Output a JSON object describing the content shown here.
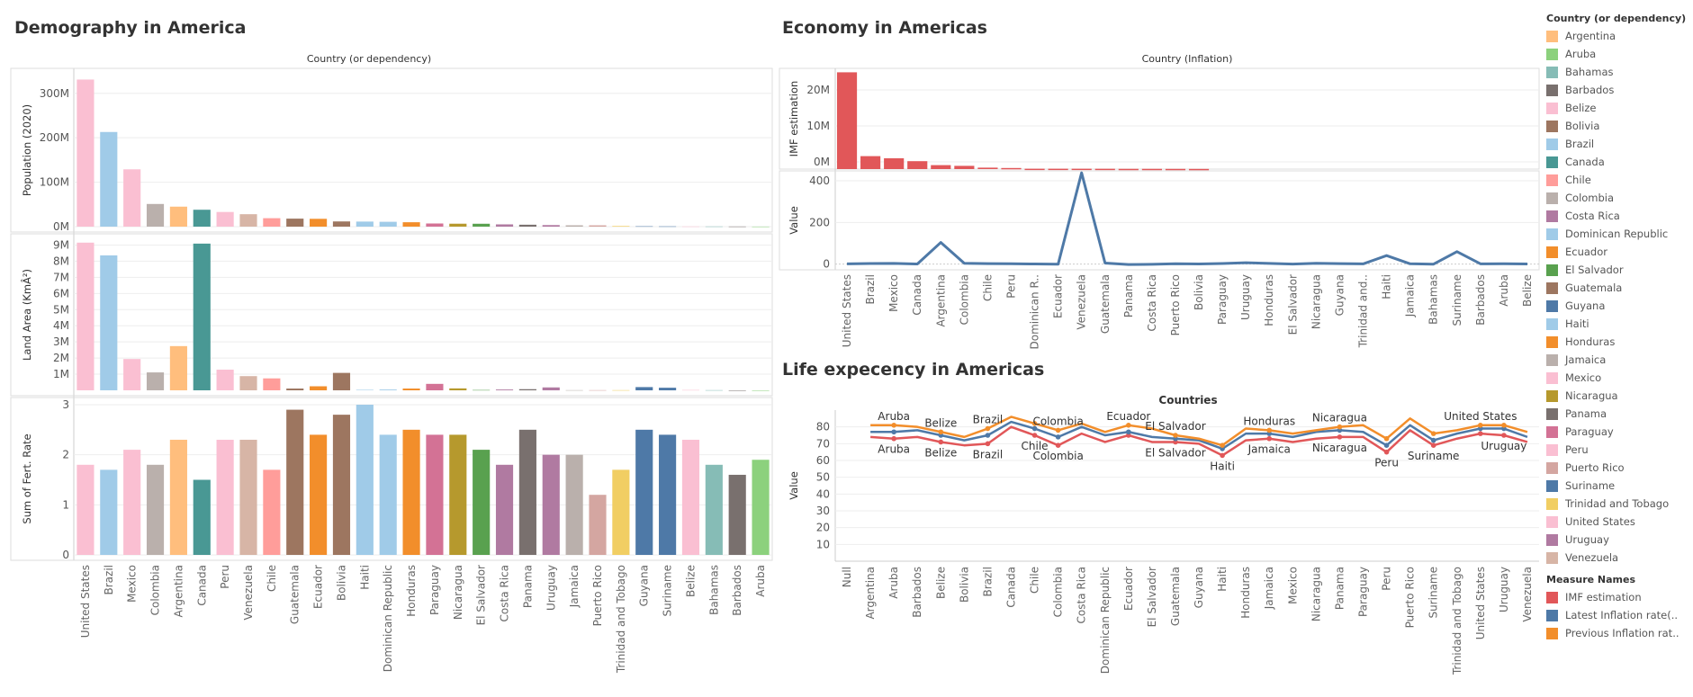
{
  "titles": {
    "demography": "Demography in America",
    "economy": "Economy in Americas",
    "life": "Life expecency in Americas"
  },
  "chart_data": [
    {
      "type": "bar",
      "header": "Country (or dependency)",
      "categories": [
        "United States",
        "Brazil",
        "Mexico",
        "Colombia",
        "Argentina",
        "Canada",
        "Peru",
        "Venezuela",
        "Chile",
        "Guatemala",
        "Ecuador",
        "Bolivia",
        "Haiti",
        "Dominican Republic",
        "Honduras",
        "Paraguay",
        "Nicaragua",
        "El Salvador",
        "Costa Rica",
        "Panama",
        "Uruguay",
        "Jamaica",
        "Puerto Rico",
        "Trinidad and Tobago",
        "Guyana",
        "Suriname",
        "Belize",
        "Bahamas",
        "Barbados",
        "Aruba"
      ],
      "panels": [
        {
          "ylabel": "Population (2020)",
          "ylim": [
            0,
            340
          ],
          "ticks": [
            {
              "v": 0,
              "label": "0M"
            },
            {
              "v": 100,
              "label": "100M"
            },
            {
              "v": 200,
              "label": "200M"
            },
            {
              "v": 300,
              "label": "300M"
            }
          ],
          "values": [
            331,
            213,
            129,
            51,
            45,
            38,
            33,
            28,
            19,
            18,
            17.6,
            11.7,
            11.4,
            10.9,
            9.9,
            7.1,
            6.6,
            6.5,
            5.1,
            4.3,
            3.5,
            3.0,
            2.9,
            1.4,
            0.79,
            0.59,
            0.4,
            0.39,
            0.29,
            0.11
          ]
        },
        {
          "ylabel": "Land Area (KmÂ²)",
          "ylim": [
            0,
            9.25
          ],
          "ticks": [
            {
              "v": 1,
              "label": "1M"
            },
            {
              "v": 2,
              "label": "2M"
            },
            {
              "v": 3,
              "label": "3M"
            },
            {
              "v": 4,
              "label": "4M"
            },
            {
              "v": 5,
              "label": "5M"
            },
            {
              "v": 6,
              "label": "6M"
            },
            {
              "v": 7,
              "label": "7M"
            },
            {
              "v": 8,
              "label": "8M"
            },
            {
              "v": 9,
              "label": "9M"
            }
          ],
          "values": [
            9.15,
            8.36,
            1.94,
            1.11,
            2.74,
            9.09,
            1.28,
            0.88,
            0.74,
            0.11,
            0.25,
            1.08,
            0.03,
            0.05,
            0.11,
            0.4,
            0.12,
            0.02,
            0.05,
            0.07,
            0.18,
            0.01,
            0.01,
            0.01,
            0.2,
            0.16,
            0.02,
            0.01,
            0.0004,
            0.0002
          ]
        },
        {
          "ylabel": "Sum of Fert. Rate",
          "ylim": [
            0,
            3
          ],
          "ticks": [
            {
              "v": 0,
              "label": "0"
            },
            {
              "v": 1,
              "label": "1"
            },
            {
              "v": 2,
              "label": "2"
            },
            {
              "v": 3,
              "label": "3"
            }
          ],
          "values": [
            1.8,
            1.7,
            2.1,
            1.8,
            2.3,
            1.5,
            2.3,
            2.3,
            1.7,
            2.9,
            2.4,
            2.8,
            3.0,
            2.4,
            2.5,
            2.4,
            2.4,
            2.1,
            1.8,
            2.5,
            2.0,
            2.0,
            1.2,
            1.7,
            2.5,
            2.4,
            2.3,
            1.8,
            1.6,
            1.9
          ]
        }
      ]
    },
    {
      "type": "bar+line",
      "header": "Country (Inflation)",
      "categories": [
        "United States",
        "Brazil",
        "Mexico",
        "Canada",
        "Argentina",
        "Colombia",
        "Chile",
        "Peru",
        "Dominican R..",
        "Ecuador",
        "Venezuela",
        "Guatemala",
        "Panama",
        "Costa Rica",
        "Puerto Rico",
        "Bolivia",
        "Paraguay",
        "Uruguay",
        "Honduras",
        "El Salvador",
        "Nicaragua",
        "Guyana",
        "Trinidad and..",
        "Haiti",
        "Jamaica",
        "Bahamas",
        "Suriname",
        "Barbados",
        "Aruba",
        "Belize"
      ],
      "bars": {
        "ylabel": "IMF estimation",
        "ylim": [
          0,
          27
        ],
        "ticks": [
          {
            "v": 0,
            "label": "0M"
          },
          {
            "v": 10,
            "label": "10M"
          },
          {
            "v": 20,
            "label": "20M"
          }
        ],
        "values": [
          26.9,
          3.6,
          3.0,
          2.2,
          1.1,
          0.9,
          0.4,
          0.3,
          0.1,
          0.1,
          0.1,
          0.09,
          0.07,
          0.07,
          0.06,
          0.05,
          null,
          null,
          null,
          null,
          null,
          null,
          null,
          null,
          null,
          null,
          null,
          null,
          null,
          null
        ]
      },
      "line": {
        "ylabel": "Value",
        "ylim": [
          -10,
          430
        ],
        "ticks": [
          {
            "v": 0,
            "label": "0"
          },
          {
            "v": 200,
            "label": "200"
          },
          {
            "v": 400,
            "label": "400"
          }
        ],
        "values": [
          1.2,
          3.2,
          3.4,
          0.7,
          104,
          4,
          2.2,
          1.8,
          0.8,
          -0.3,
          438,
          5.2,
          -2,
          -1,
          2,
          0.9,
          2.8,
          6.5,
          3.5,
          0.1,
          4,
          2.5,
          1.2,
          41,
          1.7,
          -0.1,
          60,
          1.4,
          2,
          1
        ]
      }
    },
    {
      "type": "line",
      "header": "Countries",
      "ylabel": "Value",
      "ylim": [
        0,
        90
      ],
      "ticks": [
        {
          "v": 10,
          "label": "10"
        },
        {
          "v": 20,
          "label": "20"
        },
        {
          "v": 30,
          "label": "30"
        },
        {
          "v": 40,
          "label": "40"
        },
        {
          "v": 50,
          "label": "50"
        },
        {
          "v": 60,
          "label": "60"
        },
        {
          "v": 70,
          "label": "70"
        },
        {
          "v": 80,
          "label": "80"
        }
      ],
      "categories": [
        "Null",
        "Argentina",
        "Aruba",
        "Barbados",
        "Belize",
        "Bolivia",
        "Brazil",
        "Canada",
        "Chile",
        "Colombia",
        "Costa Rica",
        "Dominican Republic",
        "Ecuador",
        "El Salvador",
        "Guatemala",
        "Guyana",
        "Haiti",
        "Honduras",
        "Jamaica",
        "Mexico",
        "Nicaragua",
        "Panama",
        "Paraguay",
        "Peru",
        "Puerto Rico",
        "Suriname",
        "Trinidad and Tobago",
        "United States",
        "Uruguay",
        "Venezuela"
      ],
      "series": [
        {
          "name": "IMF estimation",
          "color": "#e15759",
          "values": [
            null,
            74,
            73,
            74,
            71,
            69,
            70,
            80,
            75,
            69,
            76,
            71,
            75,
            71,
            71,
            70,
            63,
            72,
            73,
            71,
            73,
            74,
            74,
            65,
            78,
            69,
            73,
            76,
            75,
            71
          ]
        },
        {
          "name": "Latest Inflation rate(..",
          "color": "#4e79a7",
          "values": [
            null,
            77,
            77,
            78,
            75,
            72,
            75,
            83,
            79,
            74,
            80,
            75,
            77,
            74,
            73,
            72,
            67,
            76,
            76,
            74,
            77,
            78,
            77,
            69,
            81,
            72,
            76,
            79,
            79,
            74
          ]
        },
        {
          "name": "Previous Inflation rat..",
          "color": "#f28e2b",
          "values": [
            null,
            81,
            81,
            80,
            77,
            74,
            79,
            86,
            82,
            78,
            82,
            77,
            81,
            79,
            75,
            73,
            69,
            79,
            78,
            76,
            78,
            80,
            81,
            73,
            85,
            76,
            78,
            81,
            81,
            77
          ]
        }
      ],
      "annotations_top": [
        {
          "c": 2,
          "label": "Aruba"
        },
        {
          "c": 4,
          "label": "Belize"
        },
        {
          "c": 6,
          "label": "Brazil"
        },
        {
          "c": 9,
          "label": "Colombia"
        },
        {
          "c": 12,
          "label": "Ecuador"
        },
        {
          "c": 14,
          "label": "El Salvador"
        },
        {
          "c": 18,
          "label": "Honduras"
        },
        {
          "c": 21,
          "label": "Nicaragua"
        },
        {
          "c": 27,
          "label": "United States"
        }
      ],
      "annotations_bottom": [
        {
          "c": 2,
          "label": "Aruba"
        },
        {
          "c": 4,
          "label": "Belize"
        },
        {
          "c": 6,
          "label": "Brazil"
        },
        {
          "c": 8,
          "label": "Chile"
        },
        {
          "c": 9,
          "label": "Colombia"
        },
        {
          "c": 14,
          "label": "El Salvador"
        },
        {
          "c": 16,
          "label": "Haiti"
        },
        {
          "c": 18,
          "label": "Jamaica"
        },
        {
          "c": 21,
          "label": "Nicaragua"
        },
        {
          "c": 23,
          "label": "Peru"
        },
        {
          "c": 25,
          "label": "Suriname"
        },
        {
          "c": 28,
          "label": "Uruguay"
        }
      ]
    }
  ],
  "legend": {
    "country_title": "Country (or dependency)",
    "countries": [
      {
        "name": "Argentina",
        "color": "#ffbe7d"
      },
      {
        "name": "Aruba",
        "color": "#8cd17d"
      },
      {
        "name": "Bahamas",
        "color": "#86bcb6"
      },
      {
        "name": "Barbados",
        "color": "#79706e"
      },
      {
        "name": "Belize",
        "color": "#fabfd2"
      },
      {
        "name": "Bolivia",
        "color": "#9d7660"
      },
      {
        "name": "Brazil",
        "color": "#a0cbe8"
      },
      {
        "name": "Canada",
        "color": "#499894"
      },
      {
        "name": "Chile",
        "color": "#ff9d9a"
      },
      {
        "name": "Colombia",
        "color": "#bab0ac"
      },
      {
        "name": "Costa Rica",
        "color": "#b07aa1"
      },
      {
        "name": "Dominican Republic",
        "color": "#a0cbe8"
      },
      {
        "name": "Ecuador",
        "color": "#f28e2b"
      },
      {
        "name": "El Salvador",
        "color": "#59a14f"
      },
      {
        "name": "Guatemala",
        "color": "#9d7660"
      },
      {
        "name": "Guyana",
        "color": "#4e79a7"
      },
      {
        "name": "Haiti",
        "color": "#a0cbe8"
      },
      {
        "name": "Honduras",
        "color": "#f28e2b"
      },
      {
        "name": "Jamaica",
        "color": "#bab0ac"
      },
      {
        "name": "Mexico",
        "color": "#fabfd2"
      },
      {
        "name": "Nicaragua",
        "color": "#b6992d"
      },
      {
        "name": "Panama",
        "color": "#79706e"
      },
      {
        "name": "Paraguay",
        "color": "#d37295"
      },
      {
        "name": "Peru",
        "color": "#fabfd2"
      },
      {
        "name": "Puerto Rico",
        "color": "#d4a6a1"
      },
      {
        "name": "Suriname",
        "color": "#4e79a7"
      },
      {
        "name": "Trinidad and Tobago",
        "color": "#f1ce63"
      },
      {
        "name": "United States",
        "color": "#fabfd2"
      },
      {
        "name": "Uruguay",
        "color": "#b07aa1"
      },
      {
        "name": "Venezuela",
        "color": "#d7b5a6"
      }
    ],
    "measure_title": "Measure Names",
    "measures": [
      {
        "name": "IMF estimation",
        "color": "#e15759"
      },
      {
        "name": "Latest Inflation rate(..",
        "color": "#4e79a7"
      },
      {
        "name": "Previous Inflation rat..",
        "color": "#f28e2b"
      }
    ]
  }
}
